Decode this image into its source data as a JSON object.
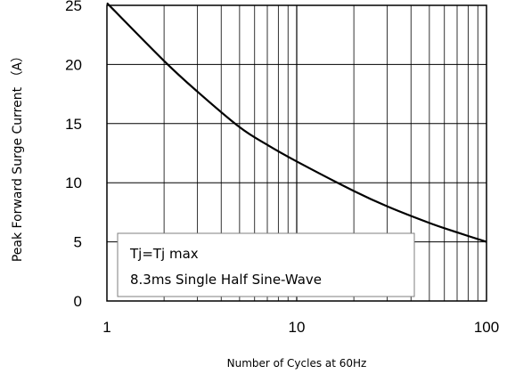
{
  "chart_data": {
    "type": "line",
    "xlabel": "Number of Cycles at 60Hz",
    "ylabel": "Peak Forward Surge Current （A）",
    "x_scale": "log",
    "xlim": [
      1,
      100
    ],
    "ylim": [
      0,
      25
    ],
    "grid": true,
    "x_ticks": [
      {
        "value": 1,
        "label": "1"
      },
      {
        "value": 10,
        "label": "10"
      },
      {
        "value": 100,
        "label": "100"
      }
    ],
    "y_ticks": [
      {
        "value": 0,
        "label": "0"
      },
      {
        "value": 5,
        "label": "5"
      },
      {
        "value": 10,
        "label": "10"
      },
      {
        "value": 15,
        "label": "15"
      },
      {
        "value": 20,
        "label": "20"
      },
      {
        "value": 25,
        "label": "25"
      }
    ],
    "series": [
      {
        "x": [
          1,
          2,
          3,
          5,
          7,
          10,
          20,
          30,
          50,
          70,
          100
        ],
        "y": [
          25.2,
          20.3,
          17.7,
          14.7,
          13.2,
          11.8,
          9.3,
          8.0,
          6.6,
          5.8,
          5.0
        ],
        "color": "#000000"
      }
    ],
    "annotations": [
      "Tj=Tj max",
      "8.3ms Single Half Sine-Wave"
    ]
  }
}
